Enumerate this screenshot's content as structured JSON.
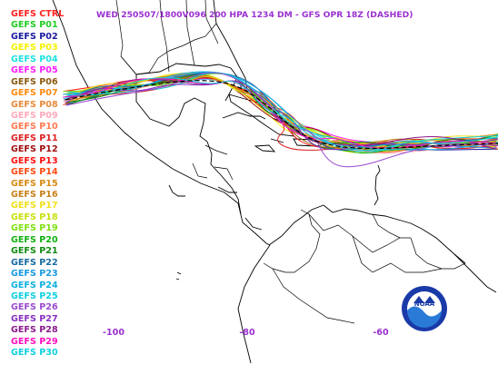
{
  "title": "WED 250507/1800V096  200 HPA 1234 DM - GFS OPR 18Z (DASHED)",
  "legend": [
    {
      "label": "GEFS CTRL",
      "color": "#ff2020"
    },
    {
      "label": "GEFS P01",
      "color": "#22cc22"
    },
    {
      "label": "GEFS P02",
      "color": "#1a1aa0"
    },
    {
      "label": "GEFS P03",
      "color": "#f2f200"
    },
    {
      "label": "GEFS P04",
      "color": "#20e0e0"
    },
    {
      "label": "GEFS P05",
      "color": "#ff20ff"
    },
    {
      "label": "GEFS P06",
      "color": "#8b5a10"
    },
    {
      "label": "GEFS P07",
      "color": "#ff8a10"
    },
    {
      "label": "GEFS P08",
      "color": "#e88a3a"
    },
    {
      "label": "GEFS P09",
      "color": "#ffaabb"
    },
    {
      "label": "GEFS P10",
      "color": "#ff7a50"
    },
    {
      "label": "GEFS P11",
      "color": "#dd2020"
    },
    {
      "label": "GEFS P12",
      "color": "#a01010"
    },
    {
      "label": "GEFS P13",
      "color": "#ff1010"
    },
    {
      "label": "GEFS P14",
      "color": "#ff4a10"
    },
    {
      "label": "GEFS P15",
      "color": "#d88a10"
    },
    {
      "label": "GEFS P16",
      "color": "#c8801a"
    },
    {
      "label": "GEFS P17",
      "color": "#f0e020"
    },
    {
      "label": "GEFS P18",
      "color": "#c8e010"
    },
    {
      "label": "GEFS P19",
      "color": "#80e010"
    },
    {
      "label": "GEFS P20",
      "color": "#10b010"
    },
    {
      "label": "GEFS P21",
      "color": "#108a10"
    },
    {
      "label": "GEFS P22",
      "color": "#1a6aa0"
    },
    {
      "label": "GEFS P23",
      "color": "#1a9ae0"
    },
    {
      "label": "GEFS P24",
      "color": "#10b0e0"
    },
    {
      "label": "GEFS P25",
      "color": "#10d0e0"
    },
    {
      "label": "GEFS P26",
      "color": "#9a4ad0"
    },
    {
      "label": "GEFS P27",
      "color": "#8a30c0"
    },
    {
      "label": "GEFS P28",
      "color": "#8a1a8a"
    },
    {
      "label": "GEFS P29",
      "color": "#ff10c0"
    },
    {
      "label": "GEFS P30",
      "color": "#10d0e0"
    }
  ],
  "axis": {
    "lon_ticks": [
      {
        "label": "-100",
        "lon": -100
      },
      {
        "label": "-80",
        "lon": -80
      },
      {
        "label": "-60",
        "lon": -60
      }
    ]
  },
  "logo": {
    "text": "NOAA"
  }
}
